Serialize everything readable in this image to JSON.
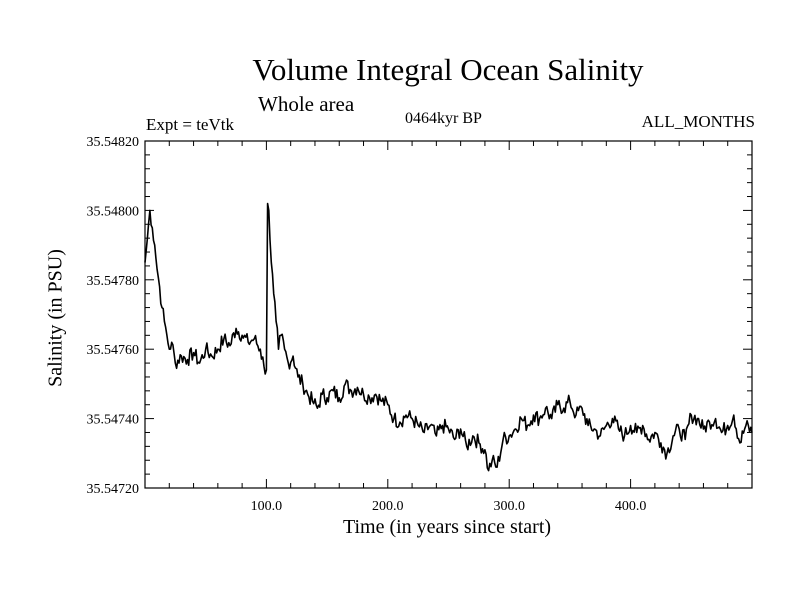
{
  "chart_data": {
    "type": "line",
    "title": "Volume Integral Ocean Salinity",
    "subtitle": "Whole area",
    "annotations": {
      "experiment": "Expt = teVtk",
      "period": "0464kyr BP",
      "months": "ALL_MONTHS"
    },
    "xlabel": "Time (in years since start)",
    "ylabel": "Salinity (in PSU)",
    "xlim": [
      0,
      500
    ],
    "ylim": [
      35.5472,
      35.5482
    ],
    "xticks": [
      100,
      200,
      300,
      400
    ],
    "xtick_labels": [
      "100.0",
      "200.0",
      "300.0",
      "400.0"
    ],
    "yticks": [
      35.5472,
      35.5474,
      35.5476,
      35.5478,
      35.548,
      35.5482
    ],
    "ytick_labels": [
      "35.54720",
      "35.54740",
      "35.54760",
      "35.54780",
      "35.54800",
      "35.54820"
    ],
    "grid": false,
    "series": [
      {
        "name": "Salinity",
        "color": "#000000",
        "x": [
          0,
          2,
          4,
          6,
          8,
          10,
          12,
          14,
          16,
          18,
          20,
          22,
          25,
          30,
          35,
          40,
          45,
          50,
          55,
          60,
          65,
          70,
          75,
          80,
          85,
          90,
          95,
          98,
          100,
          101,
          102,
          104,
          106,
          108,
          110,
          112,
          115,
          118,
          122,
          126,
          130,
          134,
          138,
          142,
          146,
          150,
          155,
          160,
          165,
          170,
          175,
          180,
          185,
          190,
          195,
          200,
          205,
          210,
          215,
          220,
          225,
          230,
          235,
          240,
          245,
          250,
          255,
          260,
          265,
          270,
          275,
          280,
          283,
          286,
          290,
          295,
          300,
          305,
          310,
          315,
          320,
          325,
          330,
          335,
          340,
          345,
          350,
          355,
          360,
          365,
          370,
          375,
          380,
          385,
          390,
          395,
          400,
          405,
          410,
          415,
          420,
          425,
          430,
          435,
          440,
          445,
          450,
          455,
          460,
          465,
          470,
          475,
          480,
          485,
          490,
          495,
          500
        ],
        "values": [
          35.54785,
          35.54792,
          35.548,
          35.54795,
          35.5479,
          35.54783,
          35.54778,
          35.54772,
          35.54768,
          35.54764,
          35.5476,
          35.54762,
          35.54756,
          35.54758,
          35.54757,
          35.54759,
          35.54756,
          35.5476,
          35.54758,
          35.5476,
          35.54763,
          35.54761,
          35.54766,
          35.54764,
          35.54762,
          35.54763,
          35.5476,
          35.54755,
          35.54754,
          35.54802,
          35.548,
          35.54785,
          35.54776,
          35.54768,
          35.5476,
          35.54764,
          35.5476,
          35.54756,
          35.54758,
          35.54752,
          35.5475,
          35.54747,
          35.54745,
          35.54743,
          35.54747,
          35.54746,
          35.54748,
          35.54746,
          35.5475,
          35.54748,
          35.54749,
          35.54747,
          35.54746,
          35.54747,
          35.54745,
          35.54744,
          35.5474,
          35.54739,
          35.54741,
          35.5474,
          35.54738,
          35.54736,
          35.54738,
          35.54735,
          35.54738,
          35.54737,
          35.54734,
          35.54737,
          35.54732,
          35.54735,
          35.54733,
          35.54731,
          35.54725,
          35.54728,
          35.54726,
          35.54734,
          35.54735,
          35.54737,
          35.5474,
          35.54738,
          35.54741,
          35.5474,
          35.54743,
          35.5474,
          35.54744,
          35.54743,
          35.54745,
          35.54741,
          35.54743,
          35.54738,
          35.54737,
          35.54735,
          35.54738,
          35.5474,
          35.54737,
          35.54735,
          35.54738,
          35.54736,
          35.54738,
          35.54734,
          35.54736,
          35.54733,
          35.5473,
          35.54735,
          35.54737,
          35.54734,
          35.54741,
          35.5474,
          35.54737,
          35.54739,
          35.5474,
          35.54736,
          35.54738,
          35.54741,
          35.54733,
          35.54738,
          35.54736
        ]
      }
    ]
  }
}
